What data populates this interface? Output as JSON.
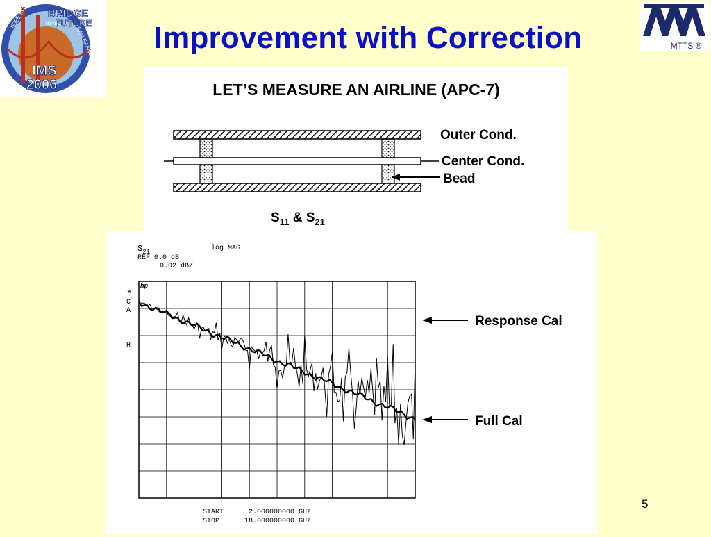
{
  "title": "Improvement with Correction",
  "slide_number": "5",
  "logo_left": {
    "icon": "ims-2006-bridge-logo",
    "text_lines": [
      "BRIDGE",
      "TO THE",
      "FUTURE",
      "IMS",
      "2006"
    ],
    "ring_text": [
      "IEEE MTT-S",
      "SAN FRANCISCO"
    ]
  },
  "logo_right": {
    "icon": "mtts-logo",
    "caption": "MTTS ®"
  },
  "airline": {
    "heading": "LET’S MEASURE AN AIRLINE (APC-7)",
    "outer_label": "Outer Cond.",
    "center_label": "Center Cond.",
    "bead_label": "Bead",
    "params": {
      "s": "S",
      "sub1": "11",
      "amp": " & ",
      "sub2": "21"
    }
  },
  "plot": {
    "param": "S",
    "param_sub": "21",
    "format": "log MAG",
    "ref_line": "REF  0.0  dB",
    "scale_line": "0.02  dB/",
    "hp_mark": "hp",
    "side_marks": [
      "*",
      "C",
      "A",
      "H"
    ],
    "start_label": "START",
    "start_value": "2.000000000 GHz",
    "stop_label": "STOP",
    "stop_value": "18.000000000 GHz",
    "response_label": "Response Cal",
    "full_label": "Full Cal"
  },
  "colors": {
    "background": "#ffffcc",
    "title": "#0b10c8",
    "mtts_blue": "#1a2a6c"
  }
}
